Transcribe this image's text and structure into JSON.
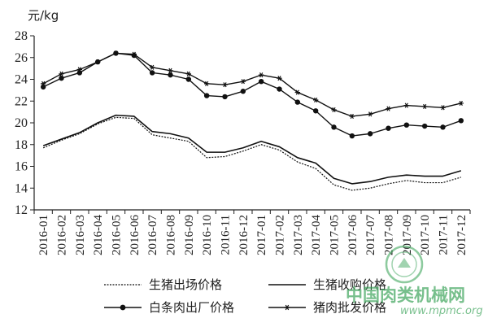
{
  "chart_data": {
    "type": "line",
    "title": "",
    "ylabel": "元/kg",
    "xlabel": "",
    "ylim": [
      12,
      28
    ],
    "yticks": [
      12,
      14,
      16,
      18,
      20,
      22,
      24,
      26,
      28
    ],
    "grid": false,
    "legend_position": "bottom",
    "categories": [
      "2016-01",
      "2016-02",
      "2016-03",
      "2016-04",
      "2016-05",
      "2016-06",
      "2016-07",
      "2016-08",
      "2016-09",
      "2016-10",
      "2016-11",
      "2016-12",
      "2017-01",
      "2017-02",
      "2017-03",
      "2017-04",
      "2017-05",
      "2017-06",
      "2017-07",
      "2017-08",
      "2017-09",
      "2017-10",
      "2017-11",
      "2017-12"
    ],
    "series": [
      {
        "name": "生猪出场价格",
        "style": "dotted",
        "values": [
          17.7,
          18.4,
          19.0,
          19.9,
          20.5,
          20.4,
          18.9,
          18.6,
          18.3,
          16.8,
          16.9,
          17.4,
          18.0,
          17.5,
          16.4,
          15.8,
          14.3,
          13.8,
          14.0,
          14.4,
          14.7,
          14.5,
          14.5,
          15.0
        ]
      },
      {
        "name": "生猪收购价格",
        "style": "solid",
        "values": [
          17.9,
          18.5,
          19.1,
          20.0,
          20.7,
          20.6,
          19.2,
          19.0,
          18.6,
          17.3,
          17.3,
          17.7,
          18.3,
          17.8,
          16.8,
          16.3,
          14.9,
          14.4,
          14.6,
          15.0,
          15.2,
          15.1,
          15.1,
          15.6
        ]
      },
      {
        "name": "白条肉出厂价格",
        "style": "solid-dot-marker",
        "values": [
          23.3,
          24.1,
          24.6,
          25.6,
          26.4,
          26.2,
          24.6,
          24.4,
          24.0,
          22.5,
          22.4,
          22.9,
          23.8,
          23.1,
          21.9,
          21.1,
          19.6,
          18.8,
          19.0,
          19.5,
          19.8,
          19.7,
          19.6,
          20.2
        ]
      },
      {
        "name": "猪肉批发价格",
        "style": "solid-star-marker",
        "values": [
          23.6,
          24.5,
          24.9,
          25.6,
          26.4,
          26.3,
          25.1,
          24.8,
          24.5,
          23.6,
          23.5,
          23.8,
          24.4,
          24.1,
          22.8,
          22.1,
          21.2,
          20.6,
          20.8,
          21.3,
          21.6,
          21.5,
          21.4,
          21.8
        ]
      }
    ]
  },
  "watermark": {
    "text": "中国肉类机械网",
    "url": "www.mpmc.org",
    "color": "#2f9e4f"
  }
}
